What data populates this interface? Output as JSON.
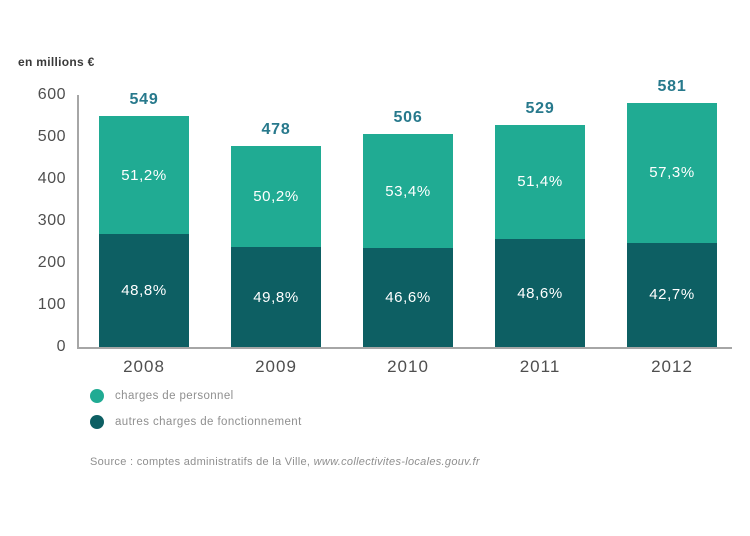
{
  "colors": {
    "personnel": "#20ab93",
    "fonctionnement": "#0d5f63",
    "total_label": "#27798c",
    "axis_line": "#a6a6a6",
    "tick_text": "#4f4f4f",
    "year_text": "#4f4f4f",
    "percent_text": "#ffffff",
    "muted_text": "#8f8f8f",
    "title_text": "#3a3a3a"
  },
  "chart_data": {
    "type": "bar",
    "stacked": true,
    "ylabel": "en millions €",
    "categories": [
      "2008",
      "2009",
      "2010",
      "2011",
      "2012"
    ],
    "totals": [
      549,
      478,
      506,
      529,
      581
    ],
    "series": [
      {
        "name": "charges de personnel",
        "percents": [
          51.2,
          50.2,
          53.4,
          51.4,
          57.3
        ],
        "percent_labels": [
          "51,2%",
          "50,2%",
          "53,4%",
          "51,4%",
          "57,3%"
        ],
        "values_millions": [
          281,
          240,
          270,
          272,
          333
        ],
        "color": "#20ab93"
      },
      {
        "name": "autres charges de fonctionnement",
        "percents": [
          48.8,
          49.8,
          46.6,
          48.6,
          42.7
        ],
        "percent_labels": [
          "48,8%",
          "49,8%",
          "46,6%",
          "48,6%",
          "42,7%"
        ],
        "values_millions": [
          268,
          238,
          236,
          257,
          248
        ],
        "color": "#0d5f63"
      }
    ],
    "ylim": [
      0,
      600
    ],
    "yticks": [
      0,
      100,
      200,
      300,
      400,
      500,
      600
    ],
    "grid": false,
    "legend_position": "bottom-left"
  },
  "legend": {
    "items": [
      {
        "label": "charges de personnel",
        "color": "#20ab93"
      },
      {
        "label": "autres charges de fonctionnement",
        "color": "#0d5f63"
      }
    ]
  },
  "source": {
    "prefix": "Source : comptes administratifs de la Ville, ",
    "link": "www.collectivites-locales.gouv.fr"
  }
}
